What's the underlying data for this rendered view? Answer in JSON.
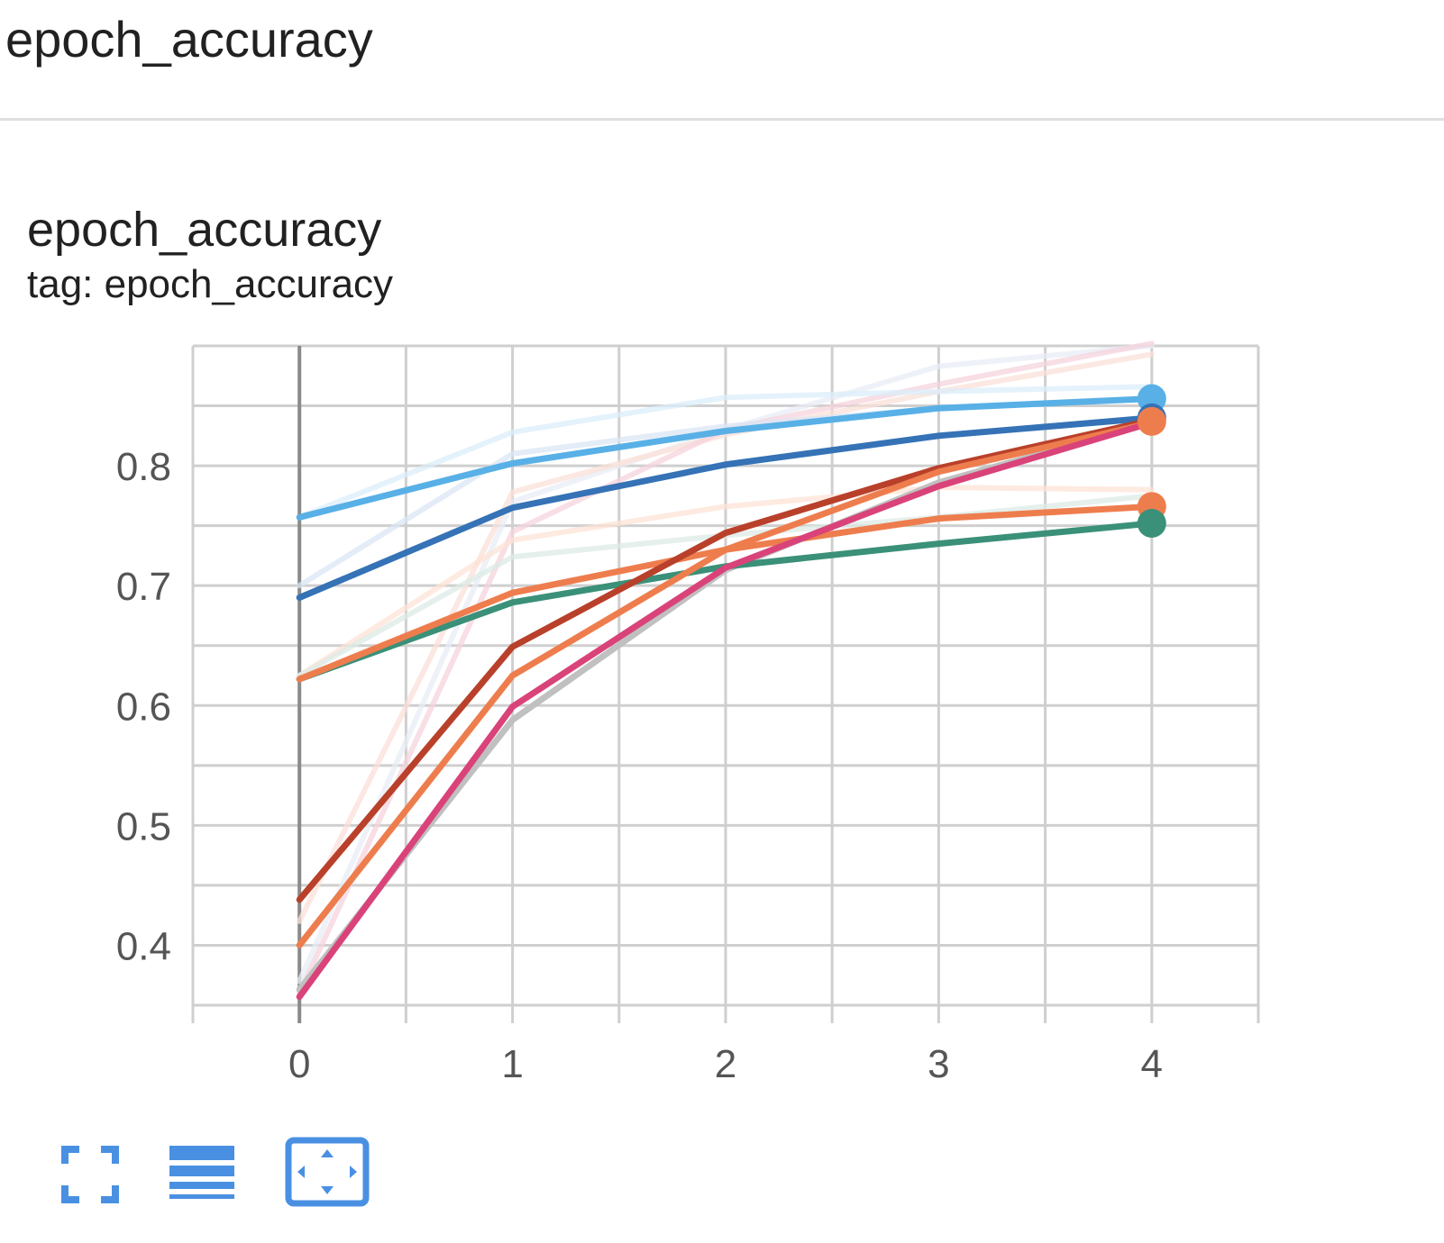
{
  "section": {
    "title": "epoch_accuracy"
  },
  "card": {
    "title": "epoch_accuracy",
    "tag": "tag: epoch_accuracy"
  },
  "toolbar": {
    "buttons": [
      {
        "name": "toggle-fullscreen",
        "icon": "fullscreen-icon"
      },
      {
        "name": "toggle-legend",
        "icon": "list-icon"
      },
      {
        "name": "fit-domain",
        "icon": "fit-to-data-icon"
      }
    ],
    "accent": "#4a90e2"
  },
  "chart_data": {
    "type": "line",
    "title": "",
    "xlabel": "",
    "ylabel": "",
    "x": [
      0,
      1,
      2,
      3,
      4
    ],
    "x_ticks": [
      "0",
      "1",
      "2",
      "3",
      "4"
    ],
    "y_ticks": [
      "0.4",
      "0.5",
      "0.6",
      "0.7",
      "0.8"
    ],
    "xlim": [
      -0.5,
      4.5
    ],
    "ylim": [
      0.35,
      0.9
    ],
    "grid": true,
    "series": [
      {
        "color": "#e8eef5",
        "faded": true,
        "values": [
          0.37,
          0.77,
          0.83,
          0.883,
          0.9
        ]
      },
      {
        "color": "#fbe0d8",
        "faded": true,
        "values": [
          0.42,
          0.778,
          0.826,
          0.862,
          0.893
        ]
      },
      {
        "color": "#f5d3dc",
        "faded": true,
        "values": [
          0.36,
          0.745,
          0.83,
          0.868,
          0.902
        ]
      },
      {
        "color": "#fde3d6",
        "faded": true,
        "values": [
          0.625,
          0.738,
          0.766,
          0.782,
          0.78
        ]
      },
      {
        "color": "#dcebe6",
        "faded": true,
        "values": [
          0.625,
          0.724,
          0.742,
          0.757,
          0.775
        ]
      },
      {
        "color": "#d9e6f4",
        "faded": true,
        "values": [
          0.7,
          0.81,
          0.833,
          0.848,
          0.856
        ]
      },
      {
        "color": "#dbeefa",
        "faded": true,
        "values": [
          0.757,
          0.828,
          0.857,
          0.862,
          0.866
        ]
      },
      {
        "color": "#c0c0c0",
        "faded": false,
        "values": [
          0.363,
          0.588,
          0.713,
          0.786,
          0.836
        ]
      },
      {
        "color": "#3a9078",
        "faded": false,
        "values": [
          0.622,
          0.686,
          0.716,
          0.735,
          0.752
        ]
      },
      {
        "color": "#ee7d4e",
        "faded": false,
        "values": [
          0.622,
          0.694,
          0.73,
          0.756,
          0.766
        ]
      },
      {
        "color": "#3572b6",
        "faded": false,
        "values": [
          0.69,
          0.765,
          0.801,
          0.825,
          0.84
        ]
      },
      {
        "color": "#b9402a",
        "faded": false,
        "values": [
          0.438,
          0.649,
          0.744,
          0.798,
          0.838
        ]
      },
      {
        "color": "#ee7d4e",
        "faded": false,
        "values": [
          0.4,
          0.625,
          0.73,
          0.795,
          0.836
        ]
      },
      {
        "color": "#d9437a",
        "faded": false,
        "values": [
          0.357,
          0.599,
          0.715,
          0.783,
          0.836
        ]
      },
      {
        "color": "#58b0e6",
        "faded": false,
        "values": [
          0.757,
          0.802,
          0.829,
          0.848,
          0.856
        ]
      }
    ],
    "end_markers": [
      {
        "color": "#58b0e6",
        "value": 0.856
      },
      {
        "color": "#3572b6",
        "value": 0.84
      },
      {
        "color": "#ee7d4e",
        "value": 0.837
      },
      {
        "color": "#ee7d4e",
        "value": 0.766
      },
      {
        "color": "#3a9078",
        "value": 0.752
      }
    ]
  }
}
